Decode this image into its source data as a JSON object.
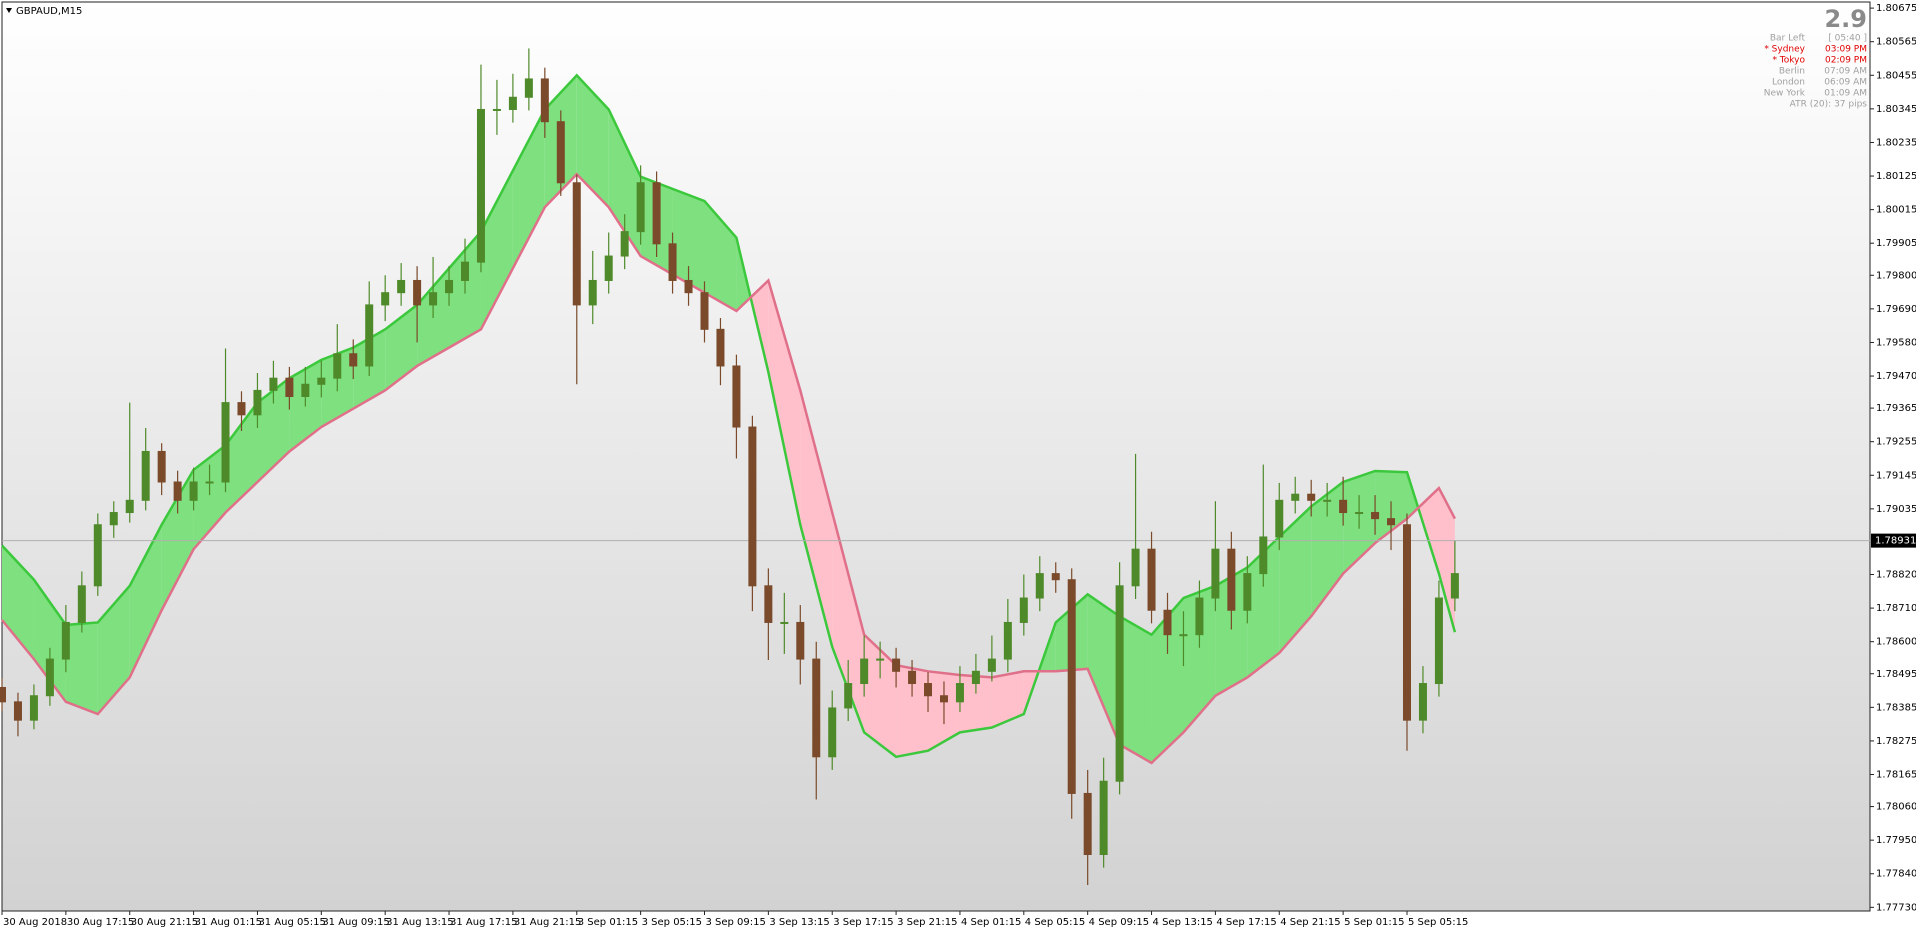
{
  "chart_data": {
    "type": "candlestick",
    "title": "GBPAUD,M15",
    "up_color": "#4f8a2a",
    "down_color": "#7a4a2a",
    "xlim": [
      0,
      117
    ],
    "ylim": [
      1.77718,
      1.80695
    ],
    "xticks": [
      {
        "value": 0,
        "label": "30 Aug 2018"
      },
      {
        "value": 4,
        "label": "30 Aug 17:15"
      },
      {
        "value": 8,
        "label": "30 Aug 21:15"
      },
      {
        "value": 12,
        "label": "31 Aug 01:15"
      },
      {
        "value": 16,
        "label": "31 Aug 05:15"
      },
      {
        "value": 20,
        "label": "31 Aug 09:15"
      },
      {
        "value": 24,
        "label": "31 Aug 13:15"
      },
      {
        "value": 28,
        "label": "31 Aug 17:15"
      },
      {
        "value": 32,
        "label": "31 Aug 21:15"
      },
      {
        "value": 36,
        "label": "3 Sep 01:15"
      },
      {
        "value": 40,
        "label": "3 Sep 05:15"
      },
      {
        "value": 44,
        "label": "3 Sep 09:15"
      },
      {
        "value": 48,
        "label": "3 Sep 13:15"
      },
      {
        "value": 52,
        "label": "3 Sep 17:15"
      },
      {
        "value": 56,
        "label": "3 Sep 21:15"
      },
      {
        "value": 60,
        "label": "4 Sep 01:15"
      },
      {
        "value": 64,
        "label": "4 Sep 05:15"
      },
      {
        "value": 68,
        "label": "4 Sep 09:15"
      },
      {
        "value": 72,
        "label": "4 Sep 13:15"
      },
      {
        "value": 76,
        "label": "4 Sep 17:15"
      },
      {
        "value": 80,
        "label": "4 Sep 21:15"
      },
      {
        "value": 84,
        "label": "5 Sep 01:15"
      },
      {
        "value": 88,
        "label": "5 Sep 05:15"
      }
    ],
    "yticks": [
      1.80675,
      1.80565,
      1.80455,
      1.80345,
      1.80235,
      1.80125,
      1.80015,
      1.79905,
      {
        "value": 1.798,
        "label": "1.79800"
      },
      {
        "value": 1.7969,
        "label": "1.79690"
      },
      {
        "value": 1.7958,
        "label": "1.79580"
      },
      {
        "value": 1.7947,
        "label": "1.79470"
      },
      1.79365,
      1.79255,
      1.79145,
      1.79035,
      {
        "value": 1.7882,
        "label": "1.78820"
      },
      {
        "value": 1.7871,
        "label": "1.78710"
      },
      {
        "value": 1.786,
        "label": "1.78600"
      },
      1.78495,
      1.78385,
      1.78275,
      1.78165,
      {
        "value": 1.7806,
        "label": "1.78060"
      },
      {
        "value": 1.7795,
        "label": "1.77950"
      },
      {
        "value": 1.7784,
        "label": "1.77840"
      },
      {
        "value": 1.7773,
        "label": "1.77730"
      }
    ],
    "bid": 1.78931,
    "x": [
      0,
      1,
      2,
      3,
      4,
      5,
      6,
      7,
      8,
      9,
      10,
      11,
      12,
      13,
      14,
      15,
      16,
      17,
      18,
      19,
      20,
      21,
      22,
      23,
      24,
      25,
      26,
      27,
      28,
      29,
      30,
      31,
      32,
      33,
      34,
      35,
      36,
      37,
      38,
      39,
      40,
      41,
      42,
      43,
      44,
      45,
      46,
      47,
      48,
      49,
      50,
      51,
      52,
      53,
      54,
      55,
      56,
      57,
      58,
      59,
      60,
      61,
      62,
      63,
      64,
      65,
      66,
      67,
      68,
      69,
      70,
      71,
      72,
      73,
      74,
      75,
      76,
      77,
      78,
      79,
      80,
      81,
      82,
      83,
      84,
      85,
      86,
      87,
      88,
      89,
      90,
      91
    ],
    "open": [
      1.7845,
      1.78403,
      1.78343,
      1.78423,
      1.78543,
      1.78663,
      1.78783,
      1.78983,
      1.79023,
      1.79063,
      1.79223,
      1.79123,
      1.79063,
      1.79123,
      1.79123,
      1.79383,
      1.79343,
      1.79423,
      1.79463,
      1.79403,
      1.79443,
      1.79463,
      1.79543,
      1.79503,
      1.79703,
      1.79743,
      1.79783,
      1.79703,
      1.79743,
      1.79783,
      1.79843,
      1.80343,
      1.80343,
      1.80383,
      1.80443,
      1.80303,
      1.80103,
      1.79703,
      1.79783,
      1.79863,
      1.79943,
      1.80103,
      1.79903,
      1.79783,
      1.79743,
      1.79623,
      1.79503,
      1.79303,
      1.78783,
      1.78663,
      1.78663,
      1.78543,
      1.78223,
      1.78383,
      1.78463,
      1.78543,
      1.78543,
      1.78503,
      1.78463,
      1.78423,
      1.78403,
      1.78463,
      1.78503,
      1.78543,
      1.78663,
      1.78743,
      1.78823,
      1.78803,
      1.78103,
      1.77903,
      1.78143,
      1.78783,
      1.78903,
      1.78703,
      1.78623,
      1.78623,
      1.78743,
      1.78903,
      1.78703,
      1.78823,
      1.78943,
      1.79063,
      1.79083,
      1.79063,
      1.79063,
      1.79023,
      1.79023,
      1.79003,
      1.78983,
      1.78343,
      1.78463,
      1.78743
    ],
    "high": [
      1.7848,
      1.78433,
      1.7846,
      1.7858,
      1.7872,
      1.7883,
      1.7902,
      1.7906,
      1.79383,
      1.793,
      1.7925,
      1.7916,
      1.7917,
      1.7918,
      1.7956,
      1.7942,
      1.7948,
      1.7952,
      1.795,
      1.795,
      1.7952,
      1.7964,
      1.7959,
      1.7978,
      1.798,
      1.7984,
      1.7983,
      1.7986,
      1.7983,
      1.7992,
      1.8049,
      1.8044,
      1.8046,
      1.80543,
      1.8048,
      1.8034,
      1.8013,
      1.7988,
      1.7994,
      1.8,
      1.8016,
      1.8014,
      1.7994,
      1.7983,
      1.7978,
      1.7966,
      1.7954,
      1.7934,
      1.7884,
      1.7876,
      1.7872,
      1.786,
      1.7844,
      1.7854,
      1.7862,
      1.786,
      1.7858,
      1.7854,
      1.785,
      1.7847,
      1.7852,
      1.7856,
      1.7862,
      1.7874,
      1.7882,
      1.7888,
      1.7886,
      1.7884,
      1.7818,
      1.7822,
      1.7886,
      1.79215,
      1.7896,
      1.7876,
      1.787,
      1.788,
      1.7906,
      1.7896,
      1.7888,
      1.7918,
      1.7912,
      1.7914,
      1.7913,
      1.7912,
      1.7914,
      1.7908,
      1.7908,
      1.7906,
      1.7902,
      1.7852,
      1.788,
      1.7893
    ],
    "low": [
      1.78373,
      1.7829,
      1.78313,
      1.7839,
      1.785,
      1.7863,
      1.7875,
      1.7894,
      1.7899,
      1.7903,
      1.7908,
      1.7902,
      1.7903,
      1.7908,
      1.7909,
      1.7929,
      1.793,
      1.7938,
      1.7936,
      1.7937,
      1.794,
      1.7942,
      1.7946,
      1.7947,
      1.7965,
      1.797,
      1.7958,
      1.7966,
      1.797,
      1.7974,
      1.7981,
      1.8026,
      1.803,
      1.8034,
      1.8025,
      1.8006,
      1.79443,
      1.7964,
      1.7974,
      1.7982,
      1.799,
      1.7986,
      1.7974,
      1.797,
      1.7958,
      1.7944,
      1.792,
      1.787,
      1.7854,
      1.7856,
      1.7846,
      1.78083,
      1.7818,
      1.7834,
      1.7842,
      1.7848,
      1.7845,
      1.7842,
      1.7837,
      1.7833,
      1.7837,
      1.7843,
      1.7847,
      1.785,
      1.7862,
      1.787,
      1.7876,
      1.7802,
      1.77803,
      1.7786,
      1.781,
      1.7874,
      1.7866,
      1.7856,
      1.7852,
      1.7858,
      1.787,
      1.7864,
      1.7866,
      1.7878,
      1.789,
      1.7902,
      1.7901,
      1.7901,
      1.7898,
      1.7897,
      1.7895,
      1.789,
      1.78243,
      1.783,
      1.7842,
      1.787
    ],
    "close": [
      1.78403,
      1.78343,
      1.78423,
      1.78543,
      1.78663,
      1.78783,
      1.78983,
      1.79023,
      1.79063,
      1.79223,
      1.79123,
      1.79063,
      1.79123,
      1.79123,
      1.79383,
      1.79343,
      1.79423,
      1.79463,
      1.79403,
      1.79443,
      1.79463,
      1.79543,
      1.79503,
      1.79703,
      1.79743,
      1.79783,
      1.79703,
      1.79743,
      1.79783,
      1.79843,
      1.80343,
      1.80343,
      1.80383,
      1.80443,
      1.80303,
      1.80103,
      1.79703,
      1.79783,
      1.79863,
      1.79943,
      1.80103,
      1.79903,
      1.79783,
      1.79743,
      1.79623,
      1.79503,
      1.79303,
      1.78783,
      1.78663,
      1.78663,
      1.78543,
      1.78223,
      1.78383,
      1.78463,
      1.78543,
      1.78543,
      1.78503,
      1.78463,
      1.78423,
      1.78403,
      1.78463,
      1.78503,
      1.78543,
      1.78663,
      1.78743,
      1.78823,
      1.78803,
      1.78103,
      1.77903,
      1.78143,
      1.78783,
      1.78903,
      1.78703,
      1.78623,
      1.78623,
      1.78743,
      1.78903,
      1.78703,
      1.78823,
      1.78943,
      1.79063,
      1.79083,
      1.79063,
      1.79063,
      1.79023,
      1.79023,
      1.79003,
      1.78983,
      1.78343,
      1.78463,
      1.78743,
      1.78823
    ],
    "band": {
      "x": [
        0,
        2,
        4,
        6,
        8,
        10,
        12,
        14,
        16,
        18,
        20,
        22,
        24,
        26,
        28,
        30,
        32,
        34,
        36,
        38,
        40,
        42,
        44,
        46,
        48,
        50,
        52,
        54,
        56,
        58,
        60,
        62,
        64,
        66,
        68,
        70,
        72,
        74,
        76,
        78,
        80,
        82,
        84,
        86,
        88,
        90,
        91
      ],
      "upper_color": "#7ee07e",
      "lower_color": "#ffc0cb",
      "lines": [
        {
          "color": "#3cc83c",
          "values": [
            1.78915,
            1.78803,
            1.78655,
            1.78663,
            1.78783,
            1.78983,
            1.79163,
            1.79243,
            1.79383,
            1.79463,
            1.79523,
            1.79563,
            1.79623,
            1.79703,
            1.79823,
            1.79943,
            1.80143,
            1.80343,
            1.80455,
            1.80343,
            1.80123,
            1.80083,
            1.80043,
            1.79923,
            1.79483,
            1.78983,
            1.78583,
            1.78303,
            1.78223,
            1.78243,
            1.78303,
            1.78319,
            1.78363,
            1.78663,
            1.78755,
            1.78683,
            1.78623,
            1.78743,
            1.78783,
            1.78843,
            1.78943,
            1.79043,
            1.79123,
            1.79159,
            1.79155,
            1.78823,
            1.78631
          ]
        },
        {
          "color": "#e0708a",
          "values": [
            1.78671,
            1.78543,
            1.78403,
            1.78363,
            1.78483,
            1.78703,
            1.78903,
            1.79023,
            1.79123,
            1.79223,
            1.79303,
            1.79363,
            1.79423,
            1.79503,
            1.79563,
            1.79623,
            1.79823,
            1.80023,
            1.80131,
            1.80023,
            1.79863,
            1.79803,
            1.79743,
            1.79683,
            1.79783,
            1.79423,
            1.79023,
            1.78623,
            1.78523,
            1.78503,
            1.78491,
            1.78483,
            1.78503,
            1.78503,
            1.78511,
            1.78263,
            1.78203,
            1.78303,
            1.78423,
            1.78483,
            1.78563,
            1.78683,
            1.78823,
            1.78923,
            1.79003,
            1.79103,
            1.79003
          ]
        }
      ]
    }
  },
  "info_panel": {
    "spread": "2.9",
    "rows": [
      {
        "label": "Bar Left",
        "value": "[ 05:40 ]",
        "color": "#a0a0a0"
      },
      {
        "label": "* Sydney",
        "value": "03:09 PM",
        "color": "#e00000"
      },
      {
        "label": "* Tokyo",
        "value": "02:09 PM",
        "color": "#e00000"
      },
      {
        "label": "Berlin",
        "value": "07:09 AM",
        "color": "#a0a0a0"
      },
      {
        "label": "London",
        "value": "06:09 AM",
        "color": "#a0a0a0"
      },
      {
        "label": "New York",
        "value": "01:09 AM",
        "color": "#a0a0a0"
      }
    ],
    "atr": "ATR (20): 37 pips"
  }
}
